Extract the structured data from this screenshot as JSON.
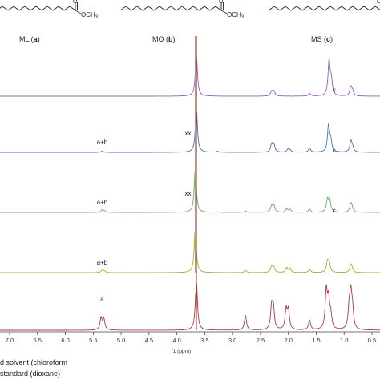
{
  "chart_data": {
    "type": "line",
    "title": "",
    "xlabel": "f1 (ppm)",
    "ylabel": "",
    "xlim": [
      7.2,
      0.4
    ],
    "x_reversed": true,
    "xticks": [
      7.0,
      6.5,
      6.0,
      5.5,
      5.0,
      4.5,
      4.0,
      3.5,
      3.0,
      2.5,
      2.0,
      1.5,
      1.0,
      0.5
    ],
    "xtick_labels": [
      "7.0",
      "6.5",
      "6.0",
      "5.5",
      "5.0",
      "4.5",
      "4.0",
      "3.5",
      "3.0",
      "2.5",
      "2.0",
      "1.5",
      "1.0",
      "0.5"
    ],
    "grid": false,
    "structures": [
      {
        "label_prefix": "ML (",
        "label_letter": "a",
        "label_suffix": ")",
        "ester_group": "OCH",
        "ester_sub": "3",
        "carbonyl": "O"
      },
      {
        "label_prefix": "MO (",
        "label_letter": "b",
        "label_suffix": ")",
        "ester_group": "OCH",
        "ester_sub": "3",
        "carbonyl": "O"
      },
      {
        "label_prefix": "MS (",
        "label_letter": "c",
        "label_suffix": ")",
        "ester_group": "",
        "ester_sub": "",
        "carbonyl": "O"
      }
    ],
    "footnotes": [
      "d solvent (chloroform",
      "standard (dioxane)"
    ],
    "series": [
      {
        "color": "#9b5bb8",
        "peaks": [
          [
            3.65,
            0.9
          ],
          [
            2.3,
            0.1
          ],
          [
            2.26,
            0.1
          ],
          [
            1.62,
            0.06
          ],
          [
            1.27,
            0.72
          ],
          [
            1.23,
            0.3
          ],
          [
            0.88,
            0.18
          ],
          [
            0.85,
            0.1
          ]
        ],
        "annotations": []
      },
      {
        "color": "#4b6fb8",
        "peaks": [
          [
            5.34,
            0.025
          ],
          [
            3.65,
            0.95
          ],
          [
            3.27,
            0.02
          ],
          [
            2.3,
            0.16
          ],
          [
            2.26,
            0.16
          ],
          [
            2.01,
            0.06
          ],
          [
            1.97,
            0.05
          ],
          [
            1.62,
            0.09
          ],
          [
            1.28,
            0.55
          ],
          [
            1.24,
            0.22
          ],
          [
            0.88,
            0.22
          ],
          [
            0.85,
            0.1
          ]
        ],
        "annotations": [
          {
            "x": 5.34,
            "text": "a+b"
          },
          {
            "x": 1.28,
            "text": "c"
          }
        ]
      },
      {
        "color": "#69ad62",
        "peaks": [
          [
            5.34,
            0.05
          ],
          [
            5.3,
            0.03
          ],
          [
            3.67,
            0.95
          ],
          [
            3.27,
            0.01
          ],
          [
            2.77,
            0.03
          ],
          [
            2.3,
            0.13
          ],
          [
            2.26,
            0.13
          ],
          [
            2.03,
            0.07
          ],
          [
            1.97,
            0.06
          ],
          [
            1.62,
            0.07
          ],
          [
            1.3,
            0.25
          ],
          [
            1.26,
            0.25
          ],
          [
            0.88,
            0.16
          ],
          [
            0.86,
            0.08
          ]
        ],
        "annotations": [
          {
            "x": 5.34,
            "text": "a+b"
          },
          {
            "x": 3.8,
            "text": "xx"
          },
          {
            "x": 1.28,
            "text": "c"
          }
        ]
      },
      {
        "color": "#9cb33a",
        "peaks": [
          [
            5.34,
            0.05
          ],
          [
            5.3,
            0.03
          ],
          [
            3.67,
            0.95
          ],
          [
            2.77,
            0.05
          ],
          [
            2.3,
            0.13
          ],
          [
            2.26,
            0.1
          ],
          [
            2.03,
            0.1
          ],
          [
            1.97,
            0.08
          ],
          [
            1.62,
            0.07
          ],
          [
            1.3,
            0.2
          ],
          [
            1.27,
            0.2
          ],
          [
            0.88,
            0.14
          ],
          [
            0.86,
            0.07
          ]
        ],
        "annotations": [
          {
            "x": 5.34,
            "text": "a+b"
          },
          {
            "x": 3.8,
            "text": "xx"
          },
          {
            "x": 1.28,
            "text": "c"
          }
        ]
      },
      {
        "color": "#a63b43",
        "peaks": [
          [
            5.36,
            0.22
          ],
          [
            5.31,
            0.2
          ],
          [
            3.65,
            0.95
          ],
          [
            2.77,
            0.27
          ],
          [
            2.3,
            0.4
          ],
          [
            2.27,
            0.38
          ],
          [
            2.04,
            0.36
          ],
          [
            2.0,
            0.34
          ],
          [
            1.62,
            0.18
          ],
          [
            1.32,
            0.7
          ],
          [
            1.28,
            0.5
          ],
          [
            1.24,
            0.25
          ],
          [
            0.91,
            0.35
          ],
          [
            0.88,
            0.6
          ],
          [
            0.85,
            0.33
          ]
        ],
        "annotations": [
          {
            "x": 5.34,
            "text": "a"
          }
        ]
      }
    ]
  }
}
